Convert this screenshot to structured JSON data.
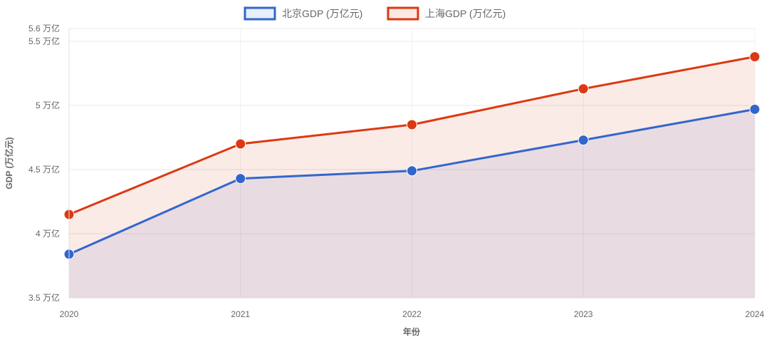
{
  "chart_data": {
    "type": "area",
    "title": "",
    "xlabel": "年份",
    "ylabel": "GDP (万亿元)",
    "categories": [
      "2020",
      "2021",
      "2022",
      "2023",
      "2024"
    ],
    "ylim": [
      3.5,
      5.6
    ],
    "y_ticks": [
      {
        "value": 3.5,
        "label": "3.5 万亿"
      },
      {
        "value": 4.0,
        "label": "4 万亿"
      },
      {
        "value": 4.5,
        "label": "4.5 万亿"
      },
      {
        "value": 5.0,
        "label": "5 万亿"
      },
      {
        "value": 5.5,
        "label": "5.5 万亿"
      },
      {
        "value": 5.6,
        "label": "5.6 万亿"
      }
    ],
    "grid": true,
    "legend_position": "top-center",
    "series": [
      {
        "name": "北京GDP (万亿元)",
        "values": [
          3.84,
          4.43,
          4.49,
          4.73,
          4.97
        ],
        "line_color": "#3366cc",
        "fill_color": "rgba(51,102,204,0.10)",
        "legend_fill": "#e8eefa"
      },
      {
        "name": "上海GDP (万亿元)",
        "values": [
          4.15,
          4.7,
          4.85,
          5.13,
          5.38
        ],
        "line_color": "#dc3912",
        "fill_color": "rgba(220,57,18,0.10)",
        "legend_fill": "#fbe8e3"
      }
    ]
  }
}
